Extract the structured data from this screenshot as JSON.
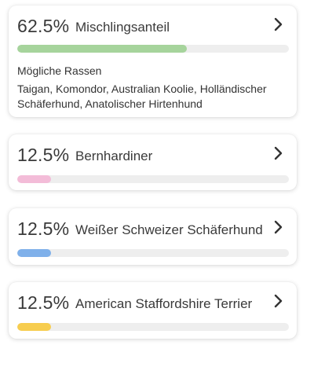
{
  "breeds": [
    {
      "percent": "62.5%",
      "value": 0.625,
      "name": "Mischlingsanteil",
      "bar_color": "#a6d49c",
      "possible_title": "Mögliche Rassen",
      "possible_breeds": "Taigan, Komondor, Australian Koolie, Holländischer Schäferhund, Anatolischer Hirtenhund"
    },
    {
      "percent": "12.5%",
      "value": 0.125,
      "name": "Bernhardiner",
      "bar_color": "#f3bcd8"
    },
    {
      "percent": "12.5%",
      "value": 0.125,
      "name": "Weißer Schweizer Schäferhund",
      "bar_color": "#7fb0ea"
    },
    {
      "percent": "12.5%",
      "value": 0.125,
      "name": "American Staffordshire Terrier",
      "bar_color": "#f7cd4f"
    }
  ],
  "icons": {
    "chevron": "chevron-right-icon"
  },
  "colors": {
    "track": "#eeeeee",
    "text": "#3a3a3a"
  }
}
